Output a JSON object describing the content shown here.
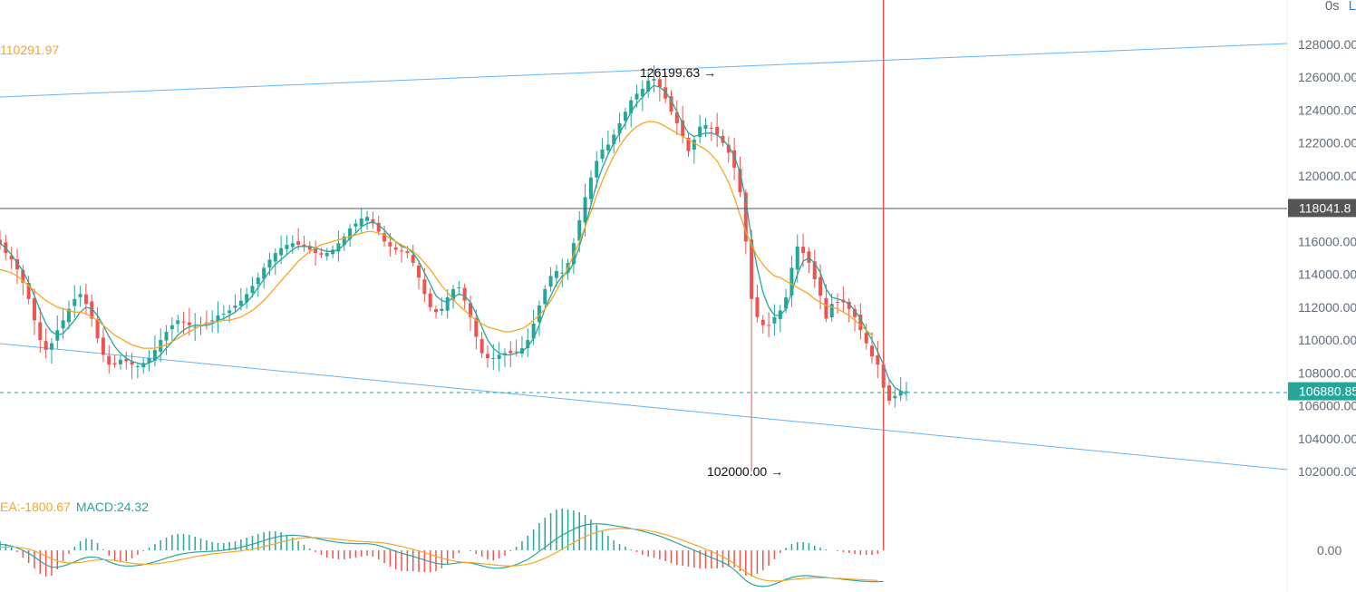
{
  "header": {
    "interval": "0s",
    "link_glyph": "L"
  },
  "indicators": {
    "ma_value": "110291.97",
    "dea_text": "EA:-1800.67",
    "macd_text": "MACD:24.32"
  },
  "price_lines": {
    "last_price": "118041.8",
    "current_price": "106880.85"
  },
  "annotations": {
    "high_label": "126199.63",
    "low_label": "102000.00"
  },
  "colors": {
    "up": "#26a69a",
    "down": "#ef5350",
    "ma_fast": "#26a69a",
    "ma_slow": "#f5a623",
    "trendline": "#64b5f6",
    "current_badge": "#26a69a",
    "last_badge": "#555555"
  },
  "chart_data": {
    "type": "candlestick",
    "y_axis": {
      "ticks": [
        "128000.00",
        "126000.00",
        "124000.00",
        "122000.00",
        "120000.00",
        "118041.8",
        "116000.00",
        "114000.00",
        "112000.00",
        "110000.00",
        "108000.00",
        "106880.85",
        "106000.00",
        "104000.00",
        "102000.00"
      ],
      "macd_tick": "0.00",
      "ylim": [
        101500,
        128500
      ]
    },
    "close_series": [
      115800,
      115300,
      114900,
      114300,
      113500,
      112500,
      111200,
      110000,
      109400,
      109800,
      110600,
      111200,
      111900,
      112500,
      112800,
      112200,
      111300,
      110100,
      109100,
      108500,
      108500,
      108800,
      108700,
      108500,
      108400,
      108600,
      108900,
      109400,
      110000,
      110500,
      110900,
      111200,
      111100,
      110900,
      110800,
      110900,
      111000,
      111200,
      111500,
      111600,
      111800,
      112100,
      112400,
      112800,
      113300,
      113800,
      114400,
      114900,
      115300,
      115600,
      115800,
      115900,
      115800,
      115700,
      115500,
      115300,
      115200,
      115300,
      115500,
      115900,
      116300,
      116800,
      117100,
      117400,
      117500,
      117100,
      116600,
      116000,
      115700,
      115500,
      115400,
      115300,
      114700,
      113800,
      112800,
      112000,
      111700,
      111900,
      112600,
      113100,
      113200,
      112400,
      111400,
      110200,
      109200,
      108900,
      108900,
      109100,
      109200,
      109200,
      109300,
      109500,
      110000,
      111000,
      112100,
      113100,
      113900,
      114200,
      114100,
      114700,
      115900,
      117300,
      118700,
      119900,
      120900,
      121600,
      121900,
      122500,
      123200,
      123900,
      124600,
      125000,
      125300,
      125800,
      125900,
      125400,
      124700,
      123900,
      123200,
      122400,
      121500,
      122200,
      123000,
      123100,
      122900,
      122500,
      122000,
      121400,
      120500,
      119000,
      116000,
      112500,
      111400,
      110900,
      110900,
      111400,
      111800,
      112600,
      114400,
      115700,
      115300,
      114700,
      113700,
      112700,
      111300,
      112200,
      112300,
      112300,
      111900,
      111400,
      110600,
      109800,
      109000,
      108500,
      107100,
      106300,
      106600,
      106900,
      106880.85
    ],
    "ma_fast_series": [
      115900,
      115600,
      115200,
      114700,
      114200,
      113500,
      112700,
      111800,
      111000,
      110500,
      110300,
      110400,
      110800,
      111200,
      111700,
      112000,
      111900,
      111500,
      110900,
      110200,
      109600,
      109200,
      108900,
      108700,
      108600,
      108500,
      108600,
      108800,
      109100,
      109500,
      109900,
      110300,
      110600,
      110800,
      110900,
      110900,
      110900,
      111000,
      111200,
      111300,
      111500,
      111700,
      112000,
      112300,
      112700,
      113200,
      113700,
      114200,
      114600,
      114900,
      115200,
      115500,
      115700,
      115700,
      115700,
      115600,
      115500,
      115400,
      115400,
      115500,
      115800,
      116200,
      116500,
      116900,
      117100,
      117200,
      117000,
      116700,
      116300,
      116000,
      115700,
      115600,
      115300,
      114800,
      114100,
      113400,
      112700,
      112400,
      112300,
      112600,
      112800,
      112700,
      112300,
      111600,
      110800,
      110000,
      109500,
      109200,
      109100,
      109100,
      109200,
      109300,
      109600,
      110100,
      110900,
      111900,
      112700,
      113400,
      113900,
      114100,
      114700,
      115700,
      116900,
      118200,
      119500,
      120500,
      121300,
      122000,
      122600,
      123200,
      123900,
      124400,
      124800,
      125200,
      125500,
      125400,
      125100,
      124600,
      123900,
      123200,
      122600,
      122400,
      122500,
      122600,
      122600,
      122500,
      122200,
      121800,
      121200,
      120200,
      118500,
      116200,
      114400,
      112900,
      112000,
      111500,
      111500,
      111900,
      112900,
      114000,
      114800,
      115000,
      114700,
      114100,
      113100,
      112600,
      112500,
      112400,
      112200,
      111800,
      111300,
      110600,
      110000,
      109300,
      108500,
      107600,
      107100,
      106900,
      106700
    ],
    "ma_slow_series": [
      114300,
      114200,
      114100,
      113900,
      113600,
      113300,
      113000,
      112700,
      112400,
      112200,
      112000,
      111900,
      111800,
      111700,
      111700,
      111600,
      111400,
      111200,
      110900,
      110600,
      110300,
      110100,
      109900,
      109700,
      109600,
      109500,
      109500,
      109500,
      109600,
      109700,
      109900,
      110100,
      110300,
      110500,
      110700,
      110900,
      111000,
      111100,
      111100,
      111200,
      111200,
      111300,
      111400,
      111600,
      111800,
      112100,
      112400,
      112800,
      113200,
      113600,
      114000,
      114400,
      114800,
      115100,
      115400,
      115600,
      115800,
      115900,
      116000,
      116100,
      116200,
      116300,
      116400,
      116500,
      116600,
      116600,
      116500,
      116400,
      116200,
      116000,
      115800,
      115600,
      115400,
      115100,
      114700,
      114300,
      113800,
      113300,
      112900,
      112500,
      112100,
      111800,
      111500,
      111200,
      111000,
      110800,
      110700,
      110600,
      110500,
      110500,
      110600,
      110700,
      110900,
      111200,
      111500,
      111900,
      112400,
      113000,
      113700,
      114400,
      115200,
      116000,
      116900,
      117800,
      118800,
      119700,
      120500,
      121200,
      121800,
      122300,
      122700,
      123000,
      123200,
      123300,
      123300,
      123200,
      123000,
      122800,
      122600,
      122400,
      122200,
      122000,
      121800,
      121600,
      121300,
      120900,
      120300,
      119600,
      118700,
      117600,
      116600,
      115800,
      115100,
      114600,
      114200,
      113900,
      113800,
      113600,
      113400,
      113200,
      113000,
      112800,
      112500,
      112300,
      112100,
      112000,
      111900,
      111700,
      111500,
      111200,
      110900,
      110600,
      110300
    ],
    "macd": {
      "macd_line": [
        200,
        180,
        140,
        80,
        0,
        -100,
        -220,
        -360,
        -480,
        -560,
        -560,
        -520,
        -460,
        -380,
        -300,
        -240,
        -220,
        -240,
        -300,
        -380,
        -450,
        -500,
        -520,
        -520,
        -500,
        -470,
        -430,
        -380,
        -320,
        -260,
        -200,
        -150,
        -110,
        -80,
        -60,
        -50,
        -40,
        -30,
        -20,
        0,
        30,
        60,
        100,
        150,
        200,
        260,
        320,
        380,
        430,
        470,
        490,
        500,
        490,
        470,
        440,
        400,
        360,
        320,
        290,
        260,
        240,
        230,
        220,
        220,
        220,
        200,
        160,
        100,
        30,
        -40,
        -100,
        -150,
        -200,
        -260,
        -320,
        -380,
        -430,
        -460,
        -460,
        -440,
        -410,
        -400,
        -420,
        -460,
        -510,
        -560,
        -590,
        -590,
        -570,
        -530,
        -470,
        -390,
        -300,
        -180,
        -40,
        100,
        240,
        380,
        500,
        600,
        700,
        780,
        840,
        870,
        880,
        870,
        850,
        820,
        790,
        760,
        720,
        680,
        630,
        580,
        530,
        470,
        400,
        320,
        240,
        160,
        80,
        0,
        -80,
        -160,
        -240,
        -320,
        -400,
        -500,
        -640,
        -820,
        -1000,
        -1120,
        -1180,
        -1200,
        -1180,
        -1120,
        -1040,
        -960,
        -900,
        -860,
        -840,
        -840,
        -860,
        -880,
        -900,
        -920,
        -940,
        -960,
        -980,
        -1000,
        -1020,
        -1030,
        -1040,
        -1040,
        -1030
      ],
      "signal_line": [
        100,
        110,
        110,
        100,
        80,
        40,
        -20,
        -100,
        -190,
        -280,
        -350,
        -400,
        -420,
        -420,
        -400,
        -370,
        -340,
        -320,
        -310,
        -320,
        -340,
        -370,
        -400,
        -430,
        -450,
        -460,
        -460,
        -450,
        -430,
        -400,
        -370,
        -330,
        -290,
        -250,
        -210,
        -180,
        -150,
        -120,
        -100,
        -80,
        -60,
        -40,
        -20,
        10,
        40,
        80,
        120,
        170,
        220,
        270,
        320,
        360,
        390,
        410,
        420,
        420,
        410,
        400,
        380,
        360,
        340,
        320,
        300,
        290,
        280,
        270,
        260,
        240,
        210,
        170,
        130,
        80,
        30,
        -20,
        -80,
        -140,
        -200,
        -260,
        -310,
        -350,
        -380,
        -400,
        -410,
        -420,
        -440,
        -460,
        -480,
        -500,
        -510,
        -520,
        -510,
        -490,
        -460,
        -410,
        -340,
        -260,
        -170,
        -70,
        40,
        150,
        260,
        360,
        450,
        530,
        600,
        650,
        690,
        710,
        720,
        720,
        710,
        700,
        680,
        650,
        610,
        570,
        520,
        460,
        400,
        330,
        260,
        190,
        120,
        40,
        -40,
        -120,
        -210,
        -320,
        -450,
        -590,
        -720,
        -830,
        -920,
        -980,
        -1010,
        -1020,
        -1010,
        -990,
        -970,
        -950,
        -930,
        -920,
        -910,
        -910,
        -910,
        -920,
        -930,
        -940,
        -950,
        -960,
        -970,
        -980,
        -990,
        -1000
      ]
    }
  }
}
